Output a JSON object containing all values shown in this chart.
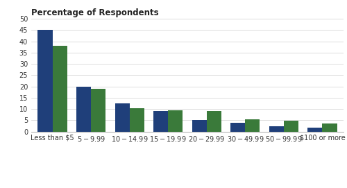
{
  "categories": [
    "Less than $5",
    "$5-$9.99",
    "$10-$14.99",
    "$15-$19.99",
    "$20-$29.99",
    "$30-$49.99",
    "$50-$99.99",
    "$100 or more"
  ],
  "paid_downloads": [
    45,
    20,
    12.5,
    9,
    5.2,
    4,
    2.5,
    1.7
  ],
  "in_app_transactions": [
    38,
    19,
    10.5,
    9.3,
    9,
    5.3,
    4.8,
    3.5
  ],
  "bar_color_paid": "#1F3F7A",
  "bar_color_inapp": "#3A7A3A",
  "title": "Percentage of Respondents",
  "ylim": [
    0,
    50
  ],
  "yticks": [
    0,
    5,
    10,
    15,
    20,
    25,
    30,
    35,
    40,
    45,
    50
  ],
  "background_color": "#ffffff",
  "grid_color": "#d0d0d0",
  "title_fontsize": 8.5,
  "tick_fontsize": 7,
  "legend_fontsize": 7.5
}
